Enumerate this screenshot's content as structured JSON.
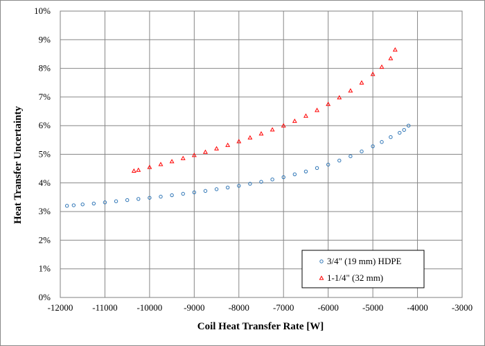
{
  "chart_data": {
    "type": "scatter",
    "xlabel": "Coil Heat Transfer Rate [W]",
    "ylabel": "Heat Transfer Uncertainty",
    "xlim": [
      -12000,
      -3000
    ],
    "ylim": [
      0,
      10
    ],
    "x_ticks": [
      "-12000",
      "-11000",
      "-10000",
      "-9000",
      "-8000",
      "-7000",
      "-6000",
      "-5000",
      "-4000",
      "-3000"
    ],
    "y_ticks": [
      "0%",
      "1%",
      "2%",
      "3%",
      "4%",
      "5%",
      "6%",
      "7%",
      "8%",
      "9%",
      "10%"
    ],
    "grid": true,
    "legend_position": "bottom-right",
    "series": [
      {
        "name": "3/4\" (19 mm) HDPE",
        "marker": "circle-open",
        "color": "#2E75B6",
        "x": [
          -11850,
          -11700,
          -11500,
          -11250,
          -11000,
          -10750,
          -10500,
          -10250,
          -10000,
          -9750,
          -9500,
          -9250,
          -9000,
          -8750,
          -8500,
          -8250,
          -8000,
          -7750,
          -7500,
          -7250,
          -7000,
          -6750,
          -6500,
          -6250,
          -6000,
          -5750,
          -5500,
          -5250,
          -5000,
          -4800,
          -4600,
          -4400,
          -4300,
          -4200
        ],
        "y": [
          3.2,
          3.22,
          3.25,
          3.28,
          3.32,
          3.36,
          3.4,
          3.44,
          3.48,
          3.52,
          3.57,
          3.62,
          3.67,
          3.72,
          3.78,
          3.84,
          3.9,
          3.97,
          4.04,
          4.12,
          4.2,
          4.3,
          4.4,
          4.52,
          4.64,
          4.78,
          4.93,
          5.1,
          5.28,
          5.43,
          5.6,
          5.75,
          5.85,
          6.0
        ]
      },
      {
        "name": "1-1/4\" (32 mm)",
        "marker": "triangle-open",
        "color": "#FF0000",
        "x": [
          -10350,
          -10250,
          -10000,
          -9750,
          -9500,
          -9250,
          -9000,
          -8750,
          -8500,
          -8250,
          -8000,
          -7750,
          -7500,
          -7250,
          -7000,
          -6750,
          -6500,
          -6250,
          -6000,
          -5750,
          -5500,
          -5250,
          -5000,
          -4800,
          -4600,
          -4500
        ],
        "y": [
          4.42,
          4.45,
          4.55,
          4.65,
          4.75,
          4.86,
          4.97,
          5.08,
          5.2,
          5.32,
          5.45,
          5.58,
          5.72,
          5.86,
          6.0,
          6.16,
          6.34,
          6.54,
          6.75,
          6.98,
          7.22,
          7.5,
          7.8,
          8.05,
          8.35,
          8.65
        ]
      }
    ]
  }
}
